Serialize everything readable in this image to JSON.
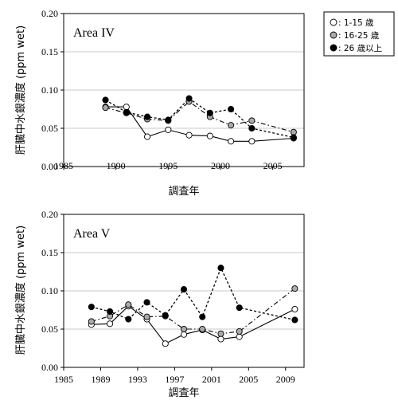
{
  "chart_data": [
    {
      "type": "line",
      "title": "Area IV",
      "xlabel": "調査年",
      "ylabel": "肝臓中水銀濃度 (ppm wet)",
      "xlim": [
        1985,
        2008
      ],
      "ylim": [
        0,
        0.2
      ],
      "xticks": [
        "1985",
        "1990",
        "1995",
        "2000",
        "2005"
      ],
      "yticks": [
        "0.00",
        "0.05",
        "0.10",
        "0.15",
        "0.20"
      ],
      "grid": true,
      "series": [
        {
          "name": ": 1-15 歳",
          "x": [
            1989,
            1991,
            1993,
            1995,
            1997,
            1999,
            2001,
            2003,
            2007
          ],
          "values": [
            0.078,
            0.078,
            0.039,
            0.048,
            0.041,
            0.04,
            0.033,
            0.033,
            0.037
          ]
        },
        {
          "name": ": 16-25 歳",
          "x": [
            1989,
            1991,
            1993,
            1995,
            1997,
            1999,
            2001,
            2003,
            2007
          ],
          "values": [
            0.077,
            0.07,
            0.062,
            0.06,
            0.085,
            0.065,
            0.054,
            0.06,
            0.045
          ]
        },
        {
          "name": ": 26 歳以上",
          "x": [
            1989,
            1991,
            1993,
            1995,
            1997,
            1999,
            2001,
            2003,
            2007
          ],
          "values": [
            0.087,
            0.071,
            0.065,
            0.061,
            0.089,
            0.07,
            0.075,
            0.05,
            0.038
          ]
        }
      ]
    },
    {
      "type": "line",
      "title": "Area V",
      "xlabel": "調査年",
      "ylabel": "肝臓中水銀濃度 (ppm wet)",
      "xlim": [
        1985,
        2011
      ],
      "ylim": [
        0,
        0.2
      ],
      "xticks": [
        "1985",
        "1989",
        "1993",
        "1997",
        "2001",
        "2005",
        "2009"
      ],
      "yticks": [
        "0.00",
        "0.05",
        "0.10",
        "0.15",
        "0.20"
      ],
      "grid": true,
      "series": [
        {
          "name": ": 1-15 歳",
          "x": [
            1988,
            1990,
            1992,
            1994,
            1996,
            1998,
            2000,
            2002,
            2004,
            2010
          ],
          "values": [
            0.056,
            0.057,
            0.08,
            0.063,
            0.031,
            0.043,
            0.049,
            0.037,
            0.04,
            0.076
          ]
        },
        {
          "name": ": 16-25 歳",
          "x": [
            1988,
            1990,
            1992,
            1994,
            1996,
            1998,
            2000,
            2002,
            2004,
            2010
          ],
          "values": [
            0.06,
            0.067,
            0.082,
            0.066,
            0.067,
            0.05,
            0.05,
            0.044,
            0.047,
            0.103
          ]
        },
        {
          "name": ": 26 歳以上",
          "x": [
            1988,
            1990,
            1992,
            1994,
            1996,
            1998,
            2000,
            2002,
            2004,
            2010
          ],
          "values": [
            0.079,
            0.073,
            0.063,
            0.085,
            0.068,
            0.102,
            0.066,
            0.13,
            0.078,
            0.062
          ]
        }
      ]
    }
  ],
  "legend": {
    "items": [
      {
        "label": ": 1-15 歳",
        "marker": "open-circle",
        "fill": "#ffffff"
      },
      {
        "label": ": 16-25 歳",
        "marker": "gray-circle",
        "fill": "#aaaaaa"
      },
      {
        "label": ": 26 歳以上",
        "marker": "black-circle",
        "fill": "#000000"
      }
    ]
  },
  "colors": {
    "young": "#ffffff",
    "middle": "#aaaaaa",
    "old": "#000000",
    "grid": "#c8c8c8"
  }
}
